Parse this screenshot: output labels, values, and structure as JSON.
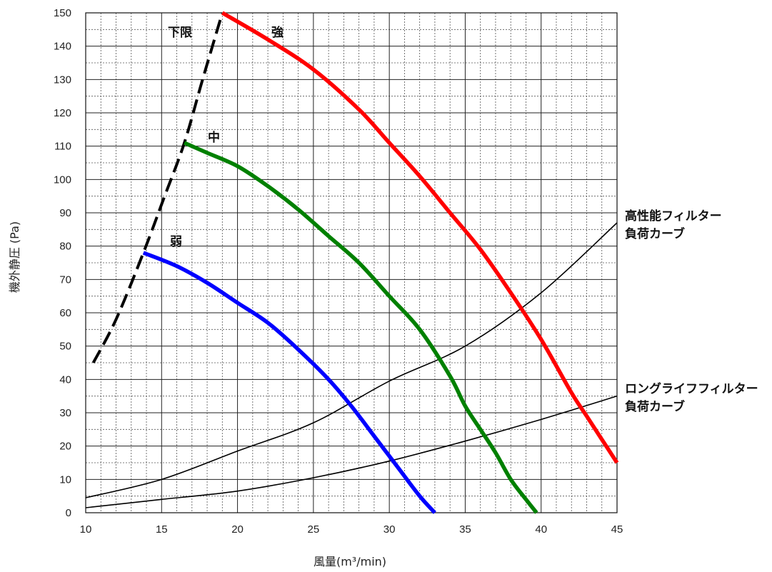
{
  "chart_data": {
    "type": "line",
    "title": "",
    "xlabel": "風量(m³/min)",
    "ylabel": "機外静圧 (Pa)",
    "xlim": [
      10,
      45
    ],
    "ylim": [
      0,
      150
    ],
    "x_ticks": [
      10,
      15,
      20,
      25,
      30,
      35,
      40,
      45
    ],
    "y_ticks": [
      0,
      10,
      20,
      30,
      40,
      50,
      60,
      70,
      80,
      90,
      100,
      110,
      120,
      130,
      140,
      150
    ],
    "grid": true,
    "series": [
      {
        "name": "弱",
        "color": "#0000ff",
        "style": "thick",
        "points": [
          [
            13.8,
            78
          ],
          [
            16,
            74
          ],
          [
            18,
            69
          ],
          [
            20,
            63
          ],
          [
            22,
            57
          ],
          [
            24,
            49
          ],
          [
            26,
            40
          ],
          [
            27.5,
            32
          ],
          [
            29,
            23
          ],
          [
            30.5,
            14
          ],
          [
            32,
            5
          ],
          [
            33,
            0
          ]
        ]
      },
      {
        "name": "中",
        "color": "#008000",
        "style": "thick",
        "points": [
          [
            16.5,
            111
          ],
          [
            18,
            108
          ],
          [
            20,
            104
          ],
          [
            22,
            98
          ],
          [
            24,
            91
          ],
          [
            26,
            83
          ],
          [
            28,
            75
          ],
          [
            30,
            65
          ],
          [
            32,
            55
          ],
          [
            34,
            41
          ],
          [
            35,
            32
          ],
          [
            36,
            25
          ],
          [
            37,
            18
          ],
          [
            38,
            10
          ],
          [
            39,
            4
          ],
          [
            39.7,
            0
          ]
        ]
      },
      {
        "name": "強",
        "color": "#ff0000",
        "style": "thick",
        "points": [
          [
            19,
            150
          ],
          [
            22,
            142
          ],
          [
            25,
            133
          ],
          [
            28,
            121
          ],
          [
            30,
            111
          ],
          [
            32,
            101
          ],
          [
            34,
            90
          ],
          [
            36,
            79
          ],
          [
            38,
            66
          ],
          [
            40,
            52
          ],
          [
            42,
            36
          ],
          [
            43,
            29
          ],
          [
            44,
            22
          ],
          [
            45,
            15
          ]
        ]
      },
      {
        "name": "下限",
        "color": "#000000",
        "style": "dashed",
        "points": [
          [
            10.5,
            45
          ],
          [
            12,
            58
          ],
          [
            13.8,
            78
          ],
          [
            15.2,
            95
          ],
          [
            16.5,
            111
          ],
          [
            17.7,
            130
          ],
          [
            19,
            150
          ]
        ]
      },
      {
        "name": "高性能フィルター負荷カーブ",
        "color": "#000000",
        "style": "thin",
        "points": [
          [
            10,
            4.5
          ],
          [
            15,
            10
          ],
          [
            20,
            18.5
          ],
          [
            25,
            27
          ],
          [
            30,
            39.5
          ],
          [
            35,
            50
          ],
          [
            40,
            66
          ],
          [
            45,
            87
          ]
        ]
      },
      {
        "name": "ロングライフフィルター負荷カーブ",
        "color": "#000000",
        "style": "thin",
        "points": [
          [
            10,
            1.5
          ],
          [
            15,
            4
          ],
          [
            20,
            6.5
          ],
          [
            25,
            10.5
          ],
          [
            30,
            15.5
          ],
          [
            35,
            21.5
          ],
          [
            40,
            28
          ],
          [
            45,
            35
          ]
        ]
      }
    ],
    "labels": {
      "lower_limit": "下限",
      "strong": "強",
      "medium": "中",
      "weak": "弱",
      "high_perf_line1": "高性能フィルター",
      "high_perf_line2": "負荷カーブ",
      "long_life_line1": "ロングライフフィルター",
      "long_life_line2": "負荷カーブ"
    }
  }
}
